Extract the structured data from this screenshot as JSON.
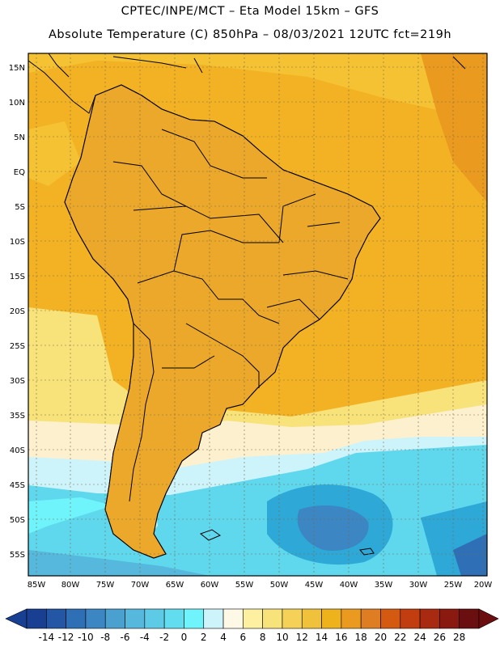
{
  "header": {
    "line1": "CPTEC/INPE/MCT –  Eta Model 15km – GFS",
    "line2": "Absolute Temperature (C) 850hPa – 08/03/2021 12UTC fct=219h"
  },
  "map": {
    "lat_labels": [
      "15N",
      "10N",
      "5N",
      "EQ",
      "5S",
      "10S",
      "15S",
      "20S",
      "25S",
      "30S",
      "35S",
      "40S",
      "45S",
      "50S",
      "55S"
    ],
    "lon_labels": [
      "85W",
      "80W",
      "75W",
      "70W",
      "65W",
      "60W",
      "55W",
      "50W",
      "45W",
      "40W",
      "35W",
      "30W",
      "25W",
      "20W"
    ],
    "colors": {
      "ocean_warm": "#f2b224",
      "land_warm": "#eba82a",
      "hot": "#e48a32",
      "cool_yellow": "#f9de6a",
      "pale": "#fdf0cf",
      "cyan": "#5fd8ee",
      "blue": "#2ea8d6"
    }
  },
  "colorbar": {
    "labels": [
      "-14",
      "-12",
      "-10",
      "-8",
      "-6",
      "-4",
      "-2",
      "0",
      "2",
      "4",
      "6",
      "8",
      "10",
      "12",
      "14",
      "16",
      "18",
      "20",
      "22",
      "24",
      "26",
      "28"
    ],
    "colors": [
      "#193f93",
      "#2357a5",
      "#2e6fb5",
      "#3b86c3",
      "#4aa0cf",
      "#55b8dc",
      "#5dcae6",
      "#62ddf0",
      "#70f4fb",
      "#cdf3fb",
      "#fef8e6",
      "#fdf0a0",
      "#f8e27a",
      "#f5d257",
      "#f0c23b",
      "#eeb21d",
      "#e99a1f",
      "#df7d22",
      "#d45a12",
      "#c23e10",
      "#a82a10",
      "#8a1a10",
      "#6b0e10"
    ]
  }
}
